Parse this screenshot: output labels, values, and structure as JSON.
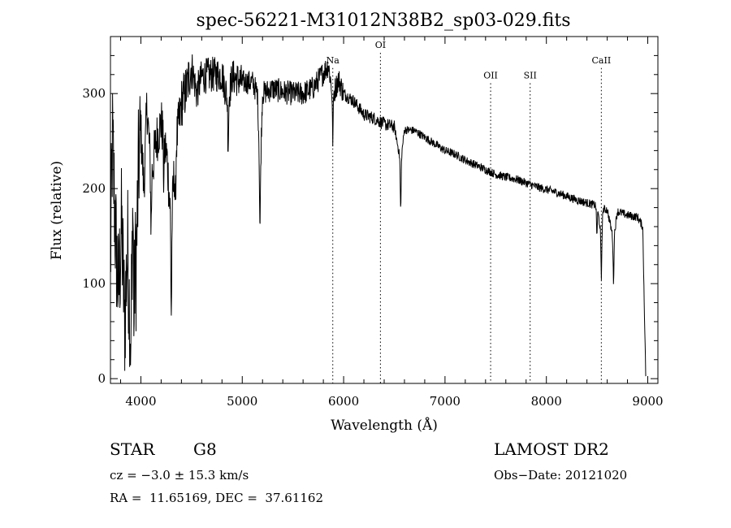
{
  "chart_data": {
    "type": "line",
    "title": "spec-56221-M31012N38B2_sp03-029.fits",
    "xlabel": "Wavelength (Å)",
    "ylabel": "Flux (relative)",
    "xlim": [
      3700,
      9100
    ],
    "ylim": [
      -5,
      360
    ],
    "xticks": [
      4000,
      5000,
      6000,
      7000,
      8000,
      9000
    ],
    "xtick_labels": [
      "4000",
      "5000",
      "6000",
      "7000",
      "8000",
      "9000"
    ],
    "yticks": [
      0,
      100,
      200,
      300
    ],
    "ytick_labels": [
      "0",
      "100",
      "200",
      "300"
    ],
    "grid": false,
    "legend": "none",
    "line_color": "#000000",
    "spectrum_anchors": [
      [
        3700,
        120
      ],
      [
        3720,
        250
      ],
      [
        3750,
        150
      ],
      [
        3780,
        90
      ],
      [
        3810,
        160
      ],
      [
        3840,
        60
      ],
      [
        3870,
        140
      ],
      [
        3900,
        30
      ],
      [
        3920,
        180
      ],
      [
        3950,
        110
      ],
      [
        3980,
        230
      ],
      [
        4000,
        260
      ],
      [
        4030,
        200
      ],
      [
        4060,
        290
      ],
      [
        4100,
        210
      ],
      [
        4150,
        250
      ],
      [
        4200,
        270
      ],
      [
        4260,
        230
      ],
      [
        4300,
        160
      ],
      [
        4340,
        240
      ],
      [
        4400,
        290
      ],
      [
        4450,
        305
      ],
      [
        4500,
        330
      ],
      [
        4550,
        300
      ],
      [
        4600,
        318
      ],
      [
        4700,
        320
      ],
      [
        4800,
        320
      ],
      [
        4860,
        292
      ],
      [
        4900,
        318
      ],
      [
        5000,
        312
      ],
      [
        5100,
        312
      ],
      [
        5150,
        300
      ],
      [
        5170,
        235
      ],
      [
        5185,
        245
      ],
      [
        5200,
        300
      ],
      [
        5300,
        305
      ],
      [
        5400,
        302
      ],
      [
        5500,
        300
      ],
      [
        5600,
        300
      ],
      [
        5700,
        306
      ],
      [
        5800,
        322
      ],
      [
        5850,
        330
      ],
      [
        5893,
        298
      ],
      [
        5950,
        315
      ],
      [
        6000,
        300
      ],
      [
        6100,
        292
      ],
      [
        6200,
        278
      ],
      [
        6300,
        274
      ],
      [
        6400,
        268
      ],
      [
        6500,
        265
      ],
      [
        6563,
        228
      ],
      [
        6600,
        262
      ],
      [
        6700,
        261
      ],
      [
        6800,
        254
      ],
      [
        6900,
        247
      ],
      [
        7000,
        240
      ],
      [
        7100,
        236
      ],
      [
        7200,
        230
      ],
      [
        7300,
        225
      ],
      [
        7400,
        220
      ],
      [
        7500,
        215
      ],
      [
        7600,
        212
      ],
      [
        7700,
        210
      ],
      [
        7800,
        206
      ],
      [
        7900,
        202
      ],
      [
        8000,
        199
      ],
      [
        8100,
        196
      ],
      [
        8200,
        192
      ],
      [
        8300,
        188
      ],
      [
        8400,
        185
      ],
      [
        8500,
        182
      ],
      [
        8542,
        150
      ],
      [
        8560,
        178
      ],
      [
        8600,
        178
      ],
      [
        8662,
        146
      ],
      [
        8700,
        176
      ],
      [
        8800,
        172
      ],
      [
        8900,
        170
      ],
      [
        8950,
        160
      ],
      [
        8980,
        5
      ]
    ],
    "absorption_features": [
      {
        "x": 3933,
        "depth": 90
      },
      {
        "x": 4101,
        "depth": 50
      },
      {
        "x": 4226,
        "depth": 45
      },
      {
        "x": 4300,
        "depth": 90
      },
      {
        "x": 4340,
        "depth": 60
      },
      {
        "x": 4861,
        "depth": 45
      },
      {
        "x": 5175,
        "depth": 80
      },
      {
        "x": 5893,
        "depth": 45
      },
      {
        "x": 6563,
        "depth": 50
      },
      {
        "x": 8498,
        "depth": 30
      },
      {
        "x": 8542,
        "depth": 45
      },
      {
        "x": 8662,
        "depth": 45
      }
    ],
    "lines": [
      {
        "name": "Na",
        "x": 5893,
        "label_y": 332
      },
      {
        "name": "OI",
        "x": 6363,
        "label_y": 348
      },
      {
        "name": "OII",
        "x": 7450,
        "label_y": 316
      },
      {
        "name": "SII",
        "x": 7840,
        "label_y": 316
      },
      {
        "name": "CaII",
        "x": 8542,
        "label_y": 332
      }
    ]
  },
  "info": {
    "object_class": "STAR",
    "subclass": "G8",
    "survey": "LAMOST DR2",
    "redshift": "cz = −3.0 ± 15.3 km/s",
    "obs_date": "Obs−Date: 20121020",
    "coords": "RA =  11.65169, DEC =  37.61162"
  }
}
